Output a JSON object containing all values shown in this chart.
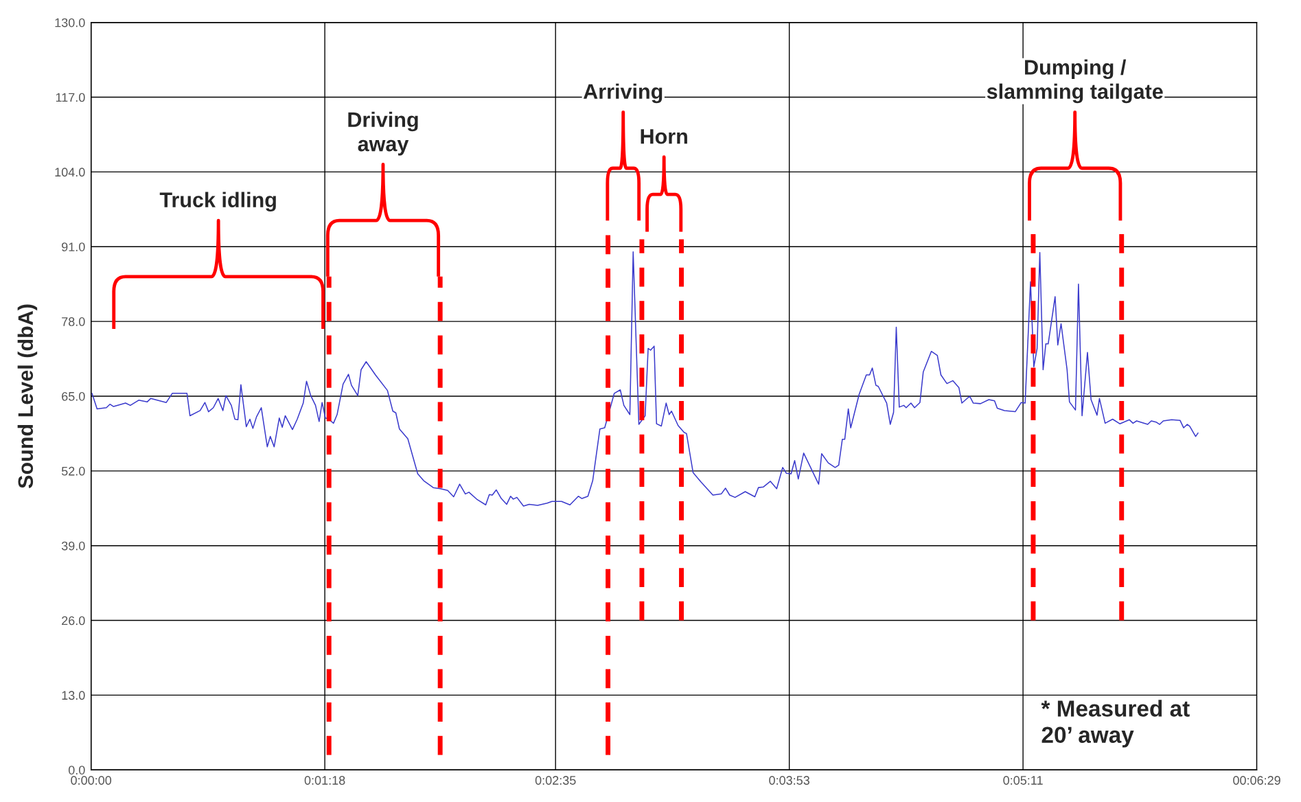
{
  "chart_data": {
    "type": "line",
    "ylabel": "Sound Level (dbA)",
    "xlim": [
      0,
      389
    ],
    "ylim": [
      0,
      130
    ],
    "xticks": [
      {
        "value": 0,
        "label": "0:00:00"
      },
      {
        "value": 78,
        "label": "0:01:18"
      },
      {
        "value": 155,
        "label": "0:02:35"
      },
      {
        "value": 233,
        "label": "0:03:53"
      },
      {
        "value": 311,
        "label": "0:05:11"
      },
      {
        "value": 389,
        "label": "00:06:29"
      }
    ],
    "yticks": [
      {
        "value": 0,
        "label": "0.0"
      },
      {
        "value": 13,
        "label": "13.0"
      },
      {
        "value": 26,
        "label": "26.0"
      },
      {
        "value": 39,
        "label": "39.0"
      },
      {
        "value": 52,
        "label": "52.0"
      },
      {
        "value": 65,
        "label": "65.0"
      },
      {
        "value": 78,
        "label": "78.0"
      },
      {
        "value": 91,
        "label": "91.0"
      },
      {
        "value": 104,
        "label": "104.0"
      },
      {
        "value": 117,
        "label": "117.0"
      },
      {
        "value": 130,
        "label": "130.0"
      }
    ],
    "grid": true,
    "marker": "none",
    "line_style": "solid",
    "series": [
      {
        "color": "#3a3acc",
        "x": [
          0.3,
          2.0,
          5.1,
          6.3,
          7.5,
          11.5,
          13.1,
          15.9,
          18.7,
          19.9,
          25.1,
          27.1,
          32.0,
          33.0,
          36.4,
          38.0,
          39.2,
          40.8,
          42.4,
          44.0,
          45.0,
          46.8,
          48.0,
          49.0,
          50.0,
          51.8,
          53.0,
          54.0,
          55.2,
          56.8,
          58.8,
          59.8,
          61.1,
          62.8,
          63.8,
          64.8,
          67.2,
          68.8,
          70.8,
          71.9,
          73.3,
          74.9,
          76.1,
          77.1,
          78.2,
          79.3,
          80.9,
          82.1,
          84.1,
          85.9,
          86.9,
          89.0,
          90.1,
          91.8,
          93.3,
          94.9,
          98.9,
          100.7,
          101.7,
          102.9,
          105.7,
          109.0,
          111.0,
          114.2,
          116.6,
          119.0,
          121.0,
          123.0,
          124.9,
          126.1,
          128.9,
          131.7,
          132.9,
          133.9,
          135.2,
          136.9,
          138.7,
          140.0,
          140.9,
          142.1,
          144.3,
          146.2,
          149.0,
          152.2,
          153.8,
          157.0,
          159.8,
          162.6,
          163.8,
          165.8,
          167.4,
          169.8,
          171.4,
          174.6,
          176.6,
          177.8,
          179.8,
          180.9,
          182.8,
          184.9,
          185.9,
          186.7,
          187.9,
          188.7,
          190.3,
          191.9,
          192.9,
          193.7,
          195.9,
          197.9,
          198.7,
          200.9,
          203.5,
          207.5,
          210.3,
          211.7,
          213.1,
          214.9,
          218.3,
          221.5,
          222.7,
          224.3,
          226.7,
          228.8,
          230.8,
          232.0,
          233.6,
          234.8,
          236.0,
          237.8,
          242.8,
          243.8,
          246.0,
          248.3,
          249.5,
          250.7,
          251.5,
          252.7,
          253.5,
          256.3,
          258.7,
          259.8,
          260.7,
          261.9,
          262.7,
          265.5,
          266.7,
          267.8,
          268.7,
          269.7,
          271.2,
          272.0,
          273.6,
          274.8,
          276.6,
          277.7,
          280.4,
          282.4,
          283.6,
          285.6,
          287.6,
          289.6,
          290.6,
          293.2,
          294.4,
          296.8,
          299.6,
          301.5,
          302.4,
          304.8,
          308.4,
          310.4,
          311.7,
          313.5,
          314.6,
          315.7,
          316.6,
          317.7,
          318.6,
          319.4,
          321.7,
          322.6,
          323.7,
          325.7,
          326.5,
          328.5,
          329.5,
          330.7,
          332.5,
          333.7,
          335.7,
          336.5,
          338.4,
          340.9,
          343.3,
          346.5,
          347.7,
          348.9,
          352.6,
          353.8,
          355.4,
          356.6,
          357.8,
          360.6,
          363.4,
          364.6,
          365.8,
          366.6,
          368.6,
          369.4
        ],
        "values": [
          65.5,
          62.8,
          63.0,
          63.6,
          63.2,
          63.8,
          63.4,
          64.3,
          64.0,
          64.6,
          63.9,
          65.5,
          65.5,
          61.6,
          62.5,
          63.9,
          62.3,
          63.0,
          64.6,
          62.5,
          65.1,
          63.4,
          61.0,
          60.9,
          67.0,
          59.7,
          61.0,
          59.4,
          61.4,
          63.0,
          56.2,
          58.0,
          56.2,
          61.2,
          59.6,
          61.6,
          59.2,
          61.0,
          63.8,
          67.6,
          65.1,
          63.4,
          60.6,
          63.9,
          61.2,
          61.0,
          60.3,
          61.8,
          67.1,
          68.8,
          66.9,
          65.1,
          69.6,
          71.0,
          69.9,
          68.7,
          66.0,
          62.4,
          62.1,
          59.3,
          57.6,
          51.5,
          50.3,
          49.1,
          48.9,
          48.6,
          47.5,
          49.7,
          48.0,
          48.3,
          47.0,
          46.1,
          47.9,
          47.8,
          48.7,
          47.2,
          46.2,
          47.6,
          47.1,
          47.4,
          45.9,
          46.2,
          46.0,
          46.4,
          46.7,
          46.7,
          46.1,
          47.6,
          47.2,
          47.6,
          50.3,
          59.3,
          59.5,
          65.5,
          66.1,
          63.4,
          61.8,
          90.1,
          60.1,
          61.6,
          73.3,
          73.0,
          73.7,
          60.2,
          59.8,
          63.8,
          61.8,
          62.4,
          59.9,
          58.7,
          58.5,
          51.7,
          50.1,
          47.8,
          48.0,
          49.0,
          47.8,
          47.4,
          48.4,
          47.5,
          49.1,
          49.2,
          50.2,
          48.9,
          52.6,
          51.6,
          51.5,
          53.8,
          50.6,
          55.1,
          49.7,
          55.0,
          53.4,
          52.6,
          53.0,
          57.5,
          57.5,
          62.8,
          59.5,
          65.3,
          68.7,
          68.7,
          69.9,
          66.9,
          66.7,
          63.8,
          60.1,
          62.2,
          77.0,
          63.1,
          63.4,
          63.0,
          63.8,
          63.0,
          63.9,
          69.2,
          72.8,
          72.1,
          68.7,
          67.2,
          67.7,
          66.5,
          63.8,
          65.0,
          63.8,
          63.7,
          64.4,
          64.2,
          62.9,
          62.5,
          62.3,
          63.9,
          63.8,
          84.9,
          70.1,
          73.3,
          90.0,
          69.6,
          74.1,
          74.1,
          82.3,
          73.9,
          77.6,
          69.6,
          64.0,
          62.6,
          84.5,
          61.6,
          72.6,
          64.4,
          61.7,
          64.6,
          60.3,
          61.0,
          60.2,
          60.9,
          60.3,
          60.7,
          60.1,
          60.7,
          60.5,
          60.1,
          60.7,
          60.9,
          60.8,
          59.5,
          60.1,
          59.8,
          58.0,
          58.6
        ]
      }
    ],
    "ref_lines": [
      {
        "axis": "x",
        "value": 79.4,
        "color": "#ff0000",
        "line_style": "dashed"
      },
      {
        "axis": "x",
        "value": 116.5,
        "color": "#ff0000",
        "line_style": "dashed"
      },
      {
        "axis": "x",
        "value": 172.5,
        "color": "#ff0000",
        "line_style": "dashed"
      },
      {
        "axis": "x",
        "value": 183.8,
        "color": "#ff0000",
        "line_style": "dashed"
      },
      {
        "axis": "x",
        "value": 197.0,
        "color": "#ff0000",
        "line_style": "dashed"
      },
      {
        "axis": "x",
        "value": 314.4,
        "color": "#ff0000",
        "line_style": "dashed"
      },
      {
        "axis": "x",
        "value": 343.9,
        "color": "#ff0000",
        "line_style": "dashed"
      }
    ],
    "annotations": [
      "Truck idling",
      "Driving\naway",
      "Arriving",
      "Horn",
      "Dumping /\nslamming tailgate",
      "* Measured at\n20’ away"
    ]
  }
}
